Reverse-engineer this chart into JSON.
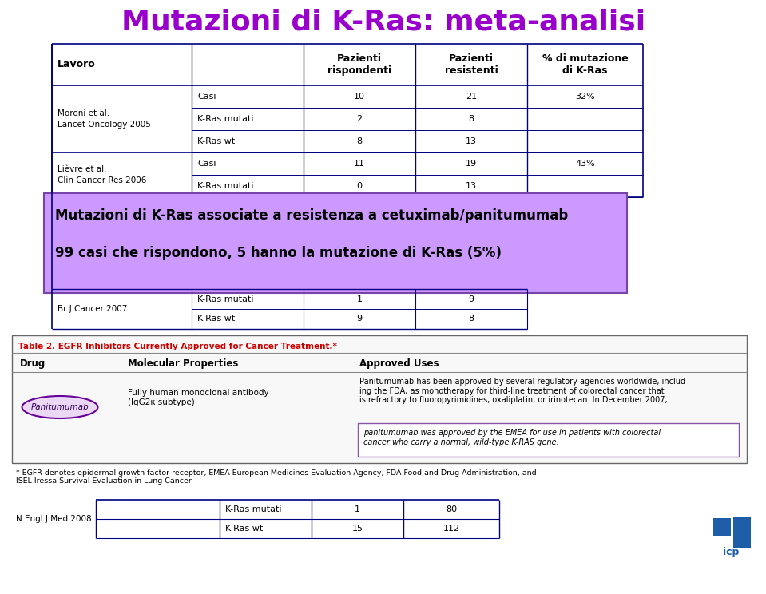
{
  "title": "Mutazioni di K-Ras: meta-analisi",
  "title_color": "#9900CC",
  "title_fontsize": 26,
  "bg_color": "#FFFFFF",
  "highlight_box_text1": "Mutazioni di K-Ras associate a resistenza a cetuximab/panitumumab",
  "highlight_box_text2": "99 casi che rispondono, 5 hanno la mutazione di K-Ras (5%)",
  "highlight_box_color": "#CC99FF",
  "brj_label": "Br J Cancer 2007",
  "brj_rows": [
    [
      "K-Ras mutati",
      "1",
      "9"
    ],
    [
      "K-Ras wt",
      "9",
      "8"
    ]
  ],
  "table2_title": "Table 2. EGFR Inhibitors Currently Approved for Cancer Treatment.*",
  "table2_title_color": "#CC0000",
  "panitumumab_text": "Panitumumab",
  "panitumumab_mol": "Fully human monoclonal antibody\n(IgG2κ subtype)",
  "panitumumab_approved": "Panitumumab has been approved by several regulatory agencies worldwide, includ-\ning the FDA, as monotherapy for third-line treatment of colorectal cancer that\nis refractory to fluoropyrimidines, oxaliplatin, or irinotecan. In December 2007,",
  "panitumumab_highlight": "panitumumab was approved by the EMEA for use in patients with colorectal\ncancer who carry a normal, wild-type K-RAS gene.",
  "footnote": "* EGFR denotes epidermal growth factor receptor, EMEA European Medicines Evaluation Agency, FDA Food and Drug Administration, and\nISEL Iressa Survival Evaluation in Lung Cancer.",
  "nengl_label": "N Engl J Med 2008",
  "nengl_rows": [
    [
      "K-Ras mutati",
      "1",
      "80"
    ],
    [
      "K-Ras wt",
      "15",
      "112"
    ]
  ],
  "table_border_color": "#000080",
  "highlight_border_color": "#8B008B",
  "moroni_label": "Moroni et al.\nLancet Oncology 2005",
  "lievre_label": "Lièvre et al.\nClin Cancer Res 2006",
  "table1_rows": [
    [
      "Casi",
      "10",
      "21",
      "32%"
    ],
    [
      "K-Ras mutati",
      "2",
      "8",
      ""
    ],
    [
      "K-Ras wt",
      "8",
      "13",
      ""
    ],
    [
      "Casi",
      "11",
      "19",
      "43%"
    ],
    [
      "K-Ras mutati",
      "0",
      "13",
      ""
    ]
  ]
}
